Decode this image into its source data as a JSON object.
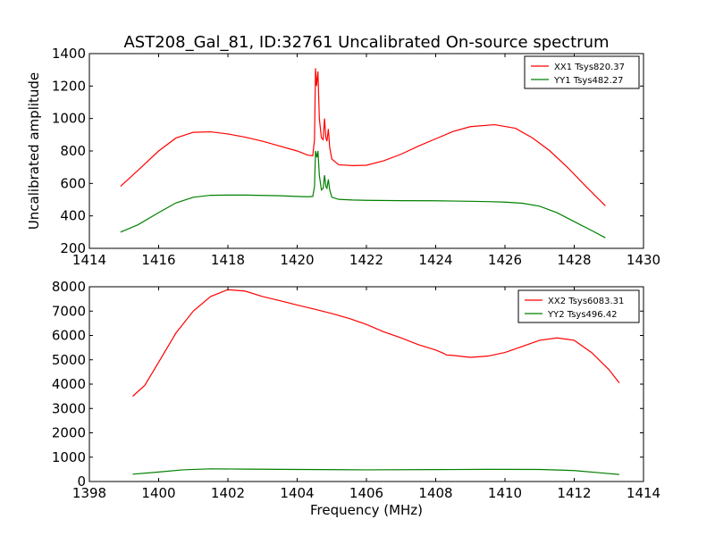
{
  "figure": {
    "title": "AST208_Gal_81, ID:32761 Uncalibrated On-source spectrum",
    "ylabel": "Uncalibrated amplitude",
    "xlabel": "Frequency (MHz)"
  },
  "chart_data": [
    {
      "type": "line",
      "xlim": [
        1414,
        1430
      ],
      "ylim": [
        200,
        1400
      ],
      "xticks": [
        1414,
        1416,
        1418,
        1420,
        1422,
        1424,
        1426,
        1428,
        1430
      ],
      "yticks": [
        200,
        400,
        600,
        800,
        1000,
        1200,
        1400
      ],
      "grid": false,
      "legend": "top-right",
      "series": [
        {
          "name": "XX1 Tsys820.37",
          "color": "#ff0000",
          "points": [
            [
              1414.9,
              582
            ],
            [
              1415.4,
              680
            ],
            [
              1416.0,
              800
            ],
            [
              1416.5,
              880
            ],
            [
              1417.0,
              915
            ],
            [
              1417.5,
              918
            ],
            [
              1418.0,
              905
            ],
            [
              1418.5,
              885
            ],
            [
              1419.0,
              860
            ],
            [
              1419.5,
              830
            ],
            [
              1420.0,
              800
            ],
            [
              1420.3,
              775
            ],
            [
              1420.45,
              770
            ],
            [
              1420.5,
              870
            ],
            [
              1420.53,
              1310
            ],
            [
              1420.56,
              1200
            ],
            [
              1420.6,
              1290
            ],
            [
              1420.64,
              1000
            ],
            [
              1420.7,
              880
            ],
            [
              1420.75,
              870
            ],
            [
              1420.79,
              1000
            ],
            [
              1420.83,
              880
            ],
            [
              1420.86,
              860
            ],
            [
              1420.9,
              935
            ],
            [
              1420.94,
              820
            ],
            [
              1421.0,
              750
            ],
            [
              1421.2,
              715
            ],
            [
              1421.6,
              710
            ],
            [
              1422.0,
              712
            ],
            [
              1422.5,
              740
            ],
            [
              1423.0,
              780
            ],
            [
              1423.5,
              830
            ],
            [
              1424.0,
              875
            ],
            [
              1424.5,
              920
            ],
            [
              1425.0,
              950
            ],
            [
              1425.7,
              962
            ],
            [
              1426.3,
              940
            ],
            [
              1426.8,
              880
            ],
            [
              1427.3,
              800
            ],
            [
              1427.8,
              700
            ],
            [
              1428.3,
              590
            ],
            [
              1428.9,
              462
            ]
          ]
        },
        {
          "name": "YY1 Tsys482.27",
          "color": "#008000",
          "points": [
            [
              1414.9,
              300
            ],
            [
              1415.4,
              345
            ],
            [
              1416.0,
              420
            ],
            [
              1416.5,
              480
            ],
            [
              1417.0,
              515
            ],
            [
              1417.5,
              527
            ],
            [
              1418.0,
              528
            ],
            [
              1418.5,
              528
            ],
            [
              1419.0,
              526
            ],
            [
              1419.5,
              524
            ],
            [
              1420.0,
              520
            ],
            [
              1420.3,
              518
            ],
            [
              1420.45,
              520
            ],
            [
              1420.5,
              580
            ],
            [
              1420.53,
              800
            ],
            [
              1420.57,
              760
            ],
            [
              1420.6,
              800
            ],
            [
              1420.64,
              650
            ],
            [
              1420.7,
              560
            ],
            [
              1420.75,
              570
            ],
            [
              1420.79,
              650
            ],
            [
              1420.83,
              580
            ],
            [
              1420.86,
              570
            ],
            [
              1420.9,
              625
            ],
            [
              1420.94,
              560
            ],
            [
              1421.0,
              515
            ],
            [
              1421.2,
              502
            ],
            [
              1421.6,
              498
            ],
            [
              1422.0,
              496
            ],
            [
              1423.0,
              494
            ],
            [
              1424.0,
              493
            ],
            [
              1425.0,
              490
            ],
            [
              1425.5,
              488
            ],
            [
              1426.0,
              485
            ],
            [
              1426.5,
              478
            ],
            [
              1427.0,
              460
            ],
            [
              1427.5,
              420
            ],
            [
              1428.0,
              365
            ],
            [
              1428.5,
              310
            ],
            [
              1428.9,
              265
            ]
          ]
        }
      ]
    },
    {
      "type": "line",
      "xlim": [
        1398,
        1414
      ],
      "ylim": [
        0,
        8000
      ],
      "xticks": [
        1398,
        1400,
        1402,
        1404,
        1406,
        1408,
        1410,
        1412,
        1414
      ],
      "yticks": [
        0,
        1000,
        2000,
        3000,
        4000,
        5000,
        6000,
        7000,
        8000
      ],
      "grid": false,
      "legend": "top-right",
      "series": [
        {
          "name": "XX2 Tsys6083.31",
          "color": "#ff0000",
          "points": [
            [
              1399.25,
              3500
            ],
            [
              1399.6,
              3950
            ],
            [
              1400.0,
              4900
            ],
            [
              1400.5,
              6100
            ],
            [
              1401.0,
              7000
            ],
            [
              1401.5,
              7600
            ],
            [
              1402.0,
              7880
            ],
            [
              1402.5,
              7820
            ],
            [
              1403.0,
              7600
            ],
            [
              1403.5,
              7430
            ],
            [
              1404.0,
              7250
            ],
            [
              1404.5,
              7080
            ],
            [
              1405.0,
              6900
            ],
            [
              1405.5,
              6700
            ],
            [
              1406.0,
              6450
            ],
            [
              1406.5,
              6150
            ],
            [
              1407.0,
              5900
            ],
            [
              1407.5,
              5620
            ],
            [
              1408.0,
              5400
            ],
            [
              1408.25,
              5250
            ],
            [
              1408.3,
              5200
            ],
            [
              1408.5,
              5180
            ],
            [
              1409.0,
              5100
            ],
            [
              1409.5,
              5150
            ],
            [
              1410.0,
              5300
            ],
            [
              1410.5,
              5550
            ],
            [
              1411.0,
              5800
            ],
            [
              1411.5,
              5900
            ],
            [
              1412.0,
              5800
            ],
            [
              1412.5,
              5300
            ],
            [
              1413.0,
              4600
            ],
            [
              1413.3,
              4050
            ]
          ]
        },
        {
          "name": "YY2 Tsys496.42",
          "color": "#008000",
          "points": [
            [
              1399.25,
              300
            ],
            [
              1400.0,
              390
            ],
            [
              1400.7,
              480
            ],
            [
              1401.5,
              520
            ],
            [
              1402.5,
              510
            ],
            [
              1404.0,
              495
            ],
            [
              1406.0,
              480
            ],
            [
              1408.0,
              490
            ],
            [
              1409.5,
              500
            ],
            [
              1411.0,
              495
            ],
            [
              1412.0,
              450
            ],
            [
              1412.8,
              350
            ],
            [
              1413.3,
              290
            ]
          ]
        }
      ]
    }
  ]
}
